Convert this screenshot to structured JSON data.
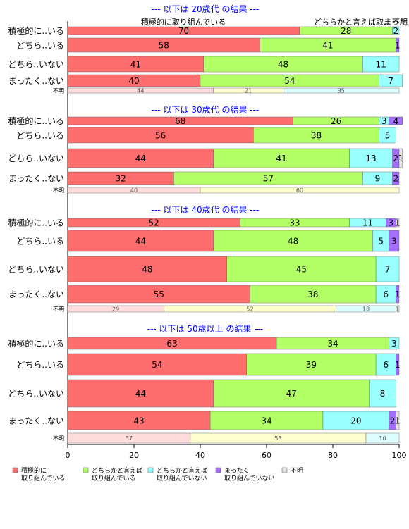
{
  "chart_data": {
    "type": "bar",
    "orientation": "horizontal-stacked-percent",
    "xlim": [
      0,
      100
    ],
    "x_ticks": [
      "0",
      "20",
      "40",
      "60",
      "80",
      "100"
    ],
    "colors": [
      "#FF6E6E",
      "#B3FF66",
      "#99FFFF",
      "#A66EFF",
      "#E6E6E6"
    ],
    "pending_colors": [
      "#FFDDDD",
      "#FFFFD0",
      "#DDFFFF",
      "#EDE0FF",
      "#F0F0F0"
    ],
    "legend": {
      "placement": "bottom",
      "entries": [
        {
          "lines": [
            "積極的に",
            "取り組んでいる"
          ]
        },
        {
          "lines": [
            "どちらかと言えば",
            "取り組んでいる"
          ]
        },
        {
          "lines": [
            "どちらかと言えば",
            "取り組んでいない"
          ]
        },
        {
          "lines": [
            "まったく",
            "取り組んでいない"
          ]
        },
        {
          "lines": [
            "不明"
          ]
        }
      ]
    },
    "panels": [
      {
        "title": "--- 以下は 20歳代 の結果 ---",
        "top_labels": [
          "積極的に取り組んでいる",
          "どちらかと言えば取..",
          "まった..",
          "不明"
        ],
        "rows": [
          {
            "label": "積極的に..いる",
            "values": [
              70,
              28,
              2,
              0,
              0
            ],
            "value_labels": [
              "70",
              "28",
              "2",
              "",
              ""
            ]
          },
          {
            "label": "どちら..いる",
            "values": [
              58,
              41,
              0,
              1,
              0
            ],
            "value_labels": [
              "58",
              "41",
              "",
              "1",
              ""
            ]
          },
          {
            "label": "どちら..いない",
            "values": [
              41,
              48,
              11,
              0,
              0
            ],
            "value_labels": [
              "41",
              "48",
              "11",
              "",
              ""
            ]
          },
          {
            "label": "まったく..ない",
            "values": [
              40,
              54,
              7,
              0,
              0
            ],
            "value_labels": [
              "40",
              "54",
              "7",
              "",
              ""
            ]
          },
          {
            "label": "不明",
            "pending": true,
            "values": [
              44,
              21,
              35,
              0,
              0
            ],
            "value_labels": [
              "44",
              "21",
              "35",
              "",
              ""
            ]
          }
        ]
      },
      {
        "title": "--- 以下は 30歳代 の結果 ---",
        "rows": [
          {
            "label": "積極的に..いる",
            "values": [
              68,
              26,
              3,
              4,
              0
            ],
            "value_labels": [
              "68",
              "26",
              "3",
              "4",
              ""
            ]
          },
          {
            "label": "どちら..いる",
            "values": [
              56,
              38,
              5,
              0,
              0
            ],
            "value_labels": [
              "56",
              "38",
              "5",
              "",
              ""
            ]
          },
          {
            "label": "どちら..いない",
            "values": [
              44,
              41,
              13,
              2,
              1
            ],
            "value_labels": [
              "44",
              "41",
              "13",
              "2",
              "1"
            ]
          },
          {
            "label": "まったく..ない",
            "values": [
              32,
              57,
              9,
              2,
              0
            ],
            "value_labels": [
              "32",
              "57",
              "9",
              "2",
              ""
            ]
          },
          {
            "label": "不明",
            "pending": true,
            "values": [
              40,
              60,
              0,
              0,
              0
            ],
            "value_labels": [
              "40",
              "60",
              "",
              "",
              ""
            ]
          }
        ]
      },
      {
        "title": "--- 以下は 40歳代 の結果 ---",
        "rows": [
          {
            "label": "積極的に..いる",
            "values": [
              52,
              33,
              11,
              3,
              1
            ],
            "value_labels": [
              "52",
              "33",
              "11",
              "3",
              "1"
            ]
          },
          {
            "label": "どちら..いる",
            "values": [
              44,
              48,
              5,
              3,
              0
            ],
            "value_labels": [
              "44",
              "48",
              "5",
              "3",
              ""
            ]
          },
          {
            "label": "どちら..いない",
            "values": [
              48,
              45,
              7,
              0,
              0
            ],
            "value_labels": [
              "48",
              "45",
              "7",
              "",
              ""
            ]
          },
          {
            "label": "まったく..ない",
            "values": [
              55,
              38,
              6,
              1,
              0
            ],
            "value_labels": [
              "55",
              "38",
              "6",
              "1",
              ""
            ]
          },
          {
            "label": "不明",
            "pending": true,
            "values": [
              29,
              52,
              18,
              0,
              1
            ],
            "value_labels": [
              "29",
              "52",
              "18",
              "",
              "1"
            ]
          }
        ]
      },
      {
        "title": "--- 以下は 50歳以上 の結果 ---",
        "rows": [
          {
            "label": "積極的に..いる",
            "values": [
              63,
              34,
              3,
              0,
              0
            ],
            "value_labels": [
              "63",
              "34",
              "3",
              "",
              ""
            ]
          },
          {
            "label": "どちら..いる",
            "values": [
              54,
              39,
              6,
              1,
              0
            ],
            "value_labels": [
              "54",
              "39",
              "6",
              "1",
              ""
            ]
          },
          {
            "label": "どちら..いない",
            "values": [
              44,
              47,
              8,
              0,
              0
            ],
            "value_labels": [
              "44",
              "47",
              "8",
              "",
              ""
            ]
          },
          {
            "label": "まったく..ない",
            "values": [
              43,
              34,
              20,
              2,
              1
            ],
            "value_labels": [
              "43",
              "34",
              "20",
              "2",
              "1"
            ]
          },
          {
            "label": "不明",
            "pending": true,
            "values": [
              37,
              53,
              10,
              0,
              0
            ],
            "value_labels": [
              "37",
              "53",
              "10",
              "",
              ""
            ]
          }
        ]
      }
    ]
  }
}
